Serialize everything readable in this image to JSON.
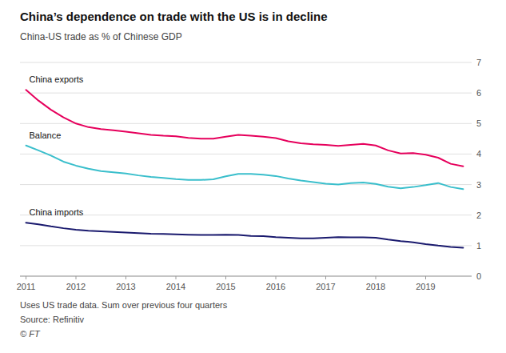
{
  "chart_data": {
    "type": "line",
    "title": "China’s dependence on trade with the US is in decline",
    "subtitle": "China-US trade as % of Chinese GDP",
    "annotations": [
      "Uses US trade data. Sum over previous four quarters",
      "Source: Refinitiv",
      "© FT"
    ],
    "x": [
      2011.0,
      2011.25,
      2011.5,
      2011.75,
      2012.0,
      2012.25,
      2012.5,
      2012.75,
      2013.0,
      2013.25,
      2013.5,
      2013.75,
      2014.0,
      2014.25,
      2014.5,
      2014.75,
      2015.0,
      2015.25,
      2015.5,
      2015.75,
      2016.0,
      2016.25,
      2016.5,
      2016.75,
      2017.0,
      2017.25,
      2017.5,
      2017.75,
      2018.0,
      2018.25,
      2018.5,
      2018.75,
      2019.0,
      2019.25,
      2019.5,
      2019.75
    ],
    "series": [
      {
        "name": "China exports",
        "color": "#e6005c",
        "values": [
          6.1,
          5.75,
          5.45,
          5.2,
          5.0,
          4.88,
          4.82,
          4.78,
          4.73,
          4.68,
          4.63,
          4.6,
          4.58,
          4.53,
          4.5,
          4.5,
          4.57,
          4.63,
          4.6,
          4.57,
          4.52,
          4.42,
          4.35,
          4.32,
          4.3,
          4.27,
          4.3,
          4.33,
          4.28,
          4.12,
          4.02,
          4.03,
          3.98,
          3.88,
          3.68,
          3.6
        ]
      },
      {
        "name": "Balance",
        "color": "#3bbfcc",
        "values": [
          4.28,
          4.12,
          3.95,
          3.75,
          3.62,
          3.52,
          3.44,
          3.4,
          3.36,
          3.3,
          3.25,
          3.22,
          3.18,
          3.15,
          3.15,
          3.17,
          3.27,
          3.35,
          3.35,
          3.32,
          3.28,
          3.2,
          3.13,
          3.08,
          3.03,
          3.0,
          3.05,
          3.07,
          3.02,
          2.93,
          2.88,
          2.92,
          2.98,
          3.05,
          2.92,
          2.85
        ]
      },
      {
        "name": "China imports",
        "color": "#1a1a6e",
        "values": [
          1.75,
          1.7,
          1.63,
          1.57,
          1.52,
          1.49,
          1.47,
          1.45,
          1.43,
          1.41,
          1.39,
          1.38,
          1.37,
          1.36,
          1.35,
          1.35,
          1.36,
          1.35,
          1.32,
          1.31,
          1.28,
          1.26,
          1.24,
          1.24,
          1.26,
          1.28,
          1.27,
          1.27,
          1.26,
          1.2,
          1.15,
          1.11,
          1.05,
          1.0,
          0.96,
          0.93
        ]
      }
    ],
    "xlim": [
      2010.88,
      2019.92
    ],
    "xticks": [
      2011,
      2012,
      2013,
      2014,
      2015,
      2016,
      2017,
      2018,
      2019
    ],
    "ylim": [
      0,
      7
    ],
    "yticks": [
      0,
      1,
      2,
      3,
      4,
      5,
      6,
      7
    ],
    "grid": true
  }
}
